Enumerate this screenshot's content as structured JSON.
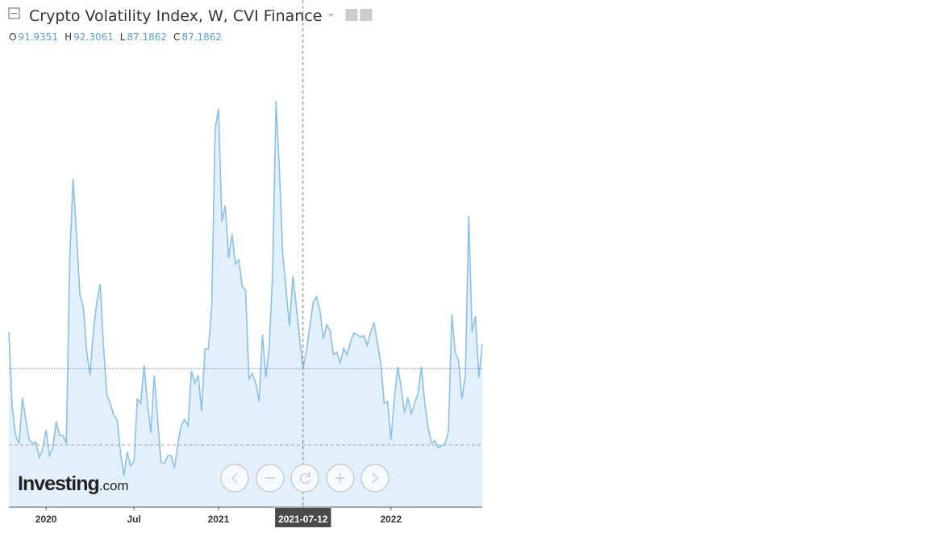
{
  "chart_data": {
    "type": "area",
    "title": "Crypto Volatility Index, W, CVI Finance",
    "ohlc": [
      {
        "label": "O",
        "value": 91.9351
      },
      {
        "label": "H",
        "value": 92.3061
      },
      {
        "label": "L",
        "value": 87.1862
      },
      {
        "label": "C",
        "value": 87.1862
      }
    ],
    "brand": {
      "name": "Investing",
      "suffix": ".com"
    },
    "color": "#8cc0e8",
    "fill": "#e1f0fa",
    "crosshair_index": 87,
    "categories": [
      null,
      null,
      null,
      null,
      null,
      null,
      null,
      null,
      null,
      null,
      null,
      "2020",
      null,
      null,
      null,
      null,
      null,
      null,
      null,
      null,
      null,
      null,
      null,
      null,
      null,
      null,
      null,
      null,
      null,
      null,
      null,
      null,
      null,
      null,
      null,
      null,
      null,
      "Jul",
      null,
      null,
      null,
      null,
      null,
      null,
      null,
      null,
      null,
      null,
      null,
      null,
      null,
      null,
      null,
      null,
      null,
      null,
      null,
      null,
      null,
      null,
      null,
      null,
      "2021",
      null,
      null,
      null,
      null,
      null,
      null,
      null,
      null,
      null,
      null,
      null,
      null,
      null,
      null,
      null,
      null,
      null,
      null,
      null,
      null,
      null,
      null,
      null,
      null,
      "2021-07-12",
      null,
      null,
      null,
      null,
      null,
      null,
      null,
      null,
      null,
      null,
      null,
      null,
      null,
      null,
      null,
      null,
      null,
      null,
      null,
      null,
      null,
      null,
      null,
      null,
      null,
      "2022",
      null,
      null,
      null,
      null,
      null,
      null,
      null,
      null,
      null,
      null,
      null,
      null,
      null,
      null,
      null,
      null,
      null,
      null,
      null,
      null,
      null,
      null,
      null,
      null,
      null,
      null,
      null
    ],
    "values": [
      97.7,
      76.0,
      67.9,
      65.6,
      78.8,
      72.5,
      66.7,
      65.6,
      66.0,
      61.6,
      63.9,
      69.5,
      62.1,
      64.4,
      71.9,
      67.9,
      67.9,
      65.6,
      119.1,
      141.9,
      126.0,
      108.6,
      105.1,
      92.3,
      85.3,
      98.1,
      106.3,
      111.6,
      93.5,
      79.5,
      77.2,
      73.7,
      72.5,
      63.2,
      56.3,
      63.2,
      59.1,
      60.5,
      78.4,
      77.2,
      88.1,
      77.2,
      68.6,
      85.3,
      72.5,
      60.2,
      59.8,
      62.1,
      62.1,
      58.6,
      65.6,
      70.9,
      72.5,
      70.7,
      86.5,
      83.0,
      85.3,
      74.9,
      92.8,
      92.8,
      105.1,
      156.3,
      162.1,
      129.5,
      134.2,
      119.1,
      126.0,
      117.4,
      118.6,
      110.9,
      109.8,
      84.2,
      85.8,
      83.0,
      77.7,
      97.0,
      84.6,
      93.5,
      114.4,
      164.4,
      144.6,
      120.2,
      109.8,
      99.3,
      113.9,
      105.1,
      95.8,
      87.2,
      92.3,
      99.3,
      106.3,
      107.9,
      103.9,
      95.8,
      99.8,
      98.1,
      91.2,
      91.9,
      88.8,
      93.0,
      91.2,
      94.6,
      97.4,
      97.0,
      96.3,
      96.7,
      93.9,
      97.7,
      100.5,
      94.6,
      88.8,
      77.2,
      77.7,
      66.7,
      78.4,
      87.7,
      81.9,
      74.4,
      78.8,
      74.2,
      77.2,
      80.0,
      87.7,
      77.2,
      70.2,
      65.6,
      66.3,
      64.4,
      64.9,
      65.6,
      69.1,
      102.8,
      91.9,
      89.5,
      78.4,
      85.3,
      131.2,
      97.7,
      102.3,
      84.6,
      94.2
    ]
  }
}
